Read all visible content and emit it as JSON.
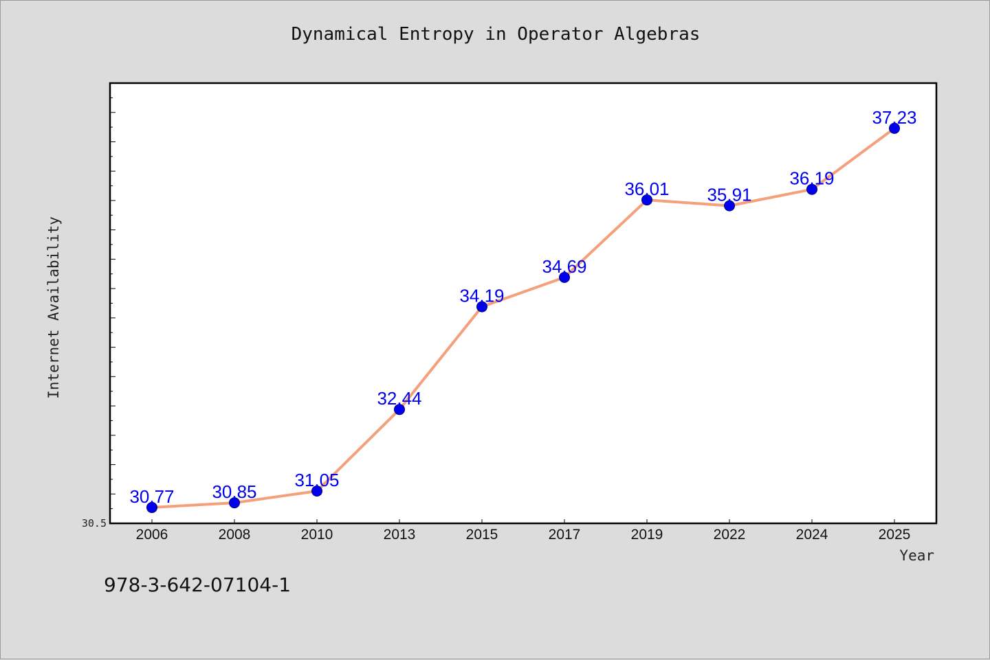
{
  "chart_data": {
    "type": "line",
    "title": "Dynamical Entropy in Operator Algebras",
    "xlabel": "Year",
    "ylabel": "Internet Availability",
    "categories": [
      "2006",
      "2008",
      "2010",
      "2013",
      "2015",
      "2017",
      "2019",
      "2022",
      "2024",
      "2025"
    ],
    "series": [
      {
        "values": [
          30.77,
          30.85,
          31.05,
          32.44,
          34.19,
          34.69,
          36.01,
          35.91,
          36.19,
          37.23
        ],
        "data_labels": [
          "30.77",
          "30.85",
          "31.05",
          "32.44",
          "34.19",
          "34.69",
          "36.01",
          "35.91",
          "36.19",
          "37.23"
        ]
      }
    ],
    "ylim": [
      30.5,
      38.0
    ],
    "y_tick_labels": [
      "30.5"
    ],
    "grid": false,
    "legend": "none",
    "line_color": "#f4a07a",
    "marker_color": "#0000ee",
    "label_color": "#0000ee"
  },
  "footer": {
    "isbn": "978-3-642-07104-1"
  }
}
